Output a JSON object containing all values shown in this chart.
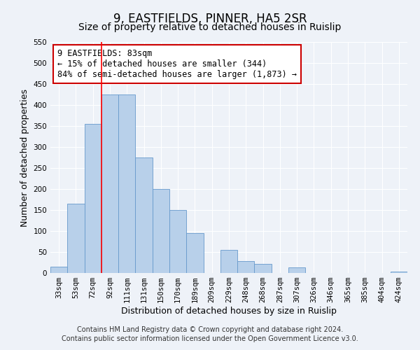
{
  "title": "9, EASTFIELDS, PINNER, HA5 2SR",
  "subtitle": "Size of property relative to detached houses in Ruislip",
  "xlabel": "Distribution of detached houses by size in Ruislip",
  "ylabel": "Number of detached properties",
  "categories": [
    "33sqm",
    "53sqm",
    "72sqm",
    "92sqm",
    "111sqm",
    "131sqm",
    "150sqm",
    "170sqm",
    "189sqm",
    "209sqm",
    "229sqm",
    "248sqm",
    "268sqm",
    "287sqm",
    "307sqm",
    "326sqm",
    "346sqm",
    "365sqm",
    "385sqm",
    "404sqm",
    "424sqm"
  ],
  "values": [
    15,
    165,
    355,
    425,
    425,
    275,
    200,
    150,
    95,
    0,
    55,
    28,
    22,
    0,
    14,
    0,
    0,
    0,
    0,
    0,
    3
  ],
  "bar_color": "#b8d0ea",
  "bar_edge_color": "#6699cc",
  "annotation_box_text": "9 EASTFIELDS: 83sqm\n← 15% of detached houses are smaller (344)\n84% of semi-detached houses are larger (1,873) →",
  "annotation_box_color": "#ffffff",
  "annotation_box_edge_color": "#cc0000",
  "red_line_x": 2.5,
  "ylim": [
    0,
    550
  ],
  "yticks": [
    0,
    50,
    100,
    150,
    200,
    250,
    300,
    350,
    400,
    450,
    500,
    550
  ],
  "footer_line1": "Contains HM Land Registry data © Crown copyright and database right 2024.",
  "footer_line2": "Contains public sector information licensed under the Open Government Licence v3.0.",
  "background_color": "#eef2f8",
  "plot_background_color": "#eef2f8",
  "title_fontsize": 12,
  "subtitle_fontsize": 10,
  "axis_label_fontsize": 9,
  "tick_fontsize": 7.5,
  "annotation_fontsize": 8.5,
  "footer_fontsize": 7
}
